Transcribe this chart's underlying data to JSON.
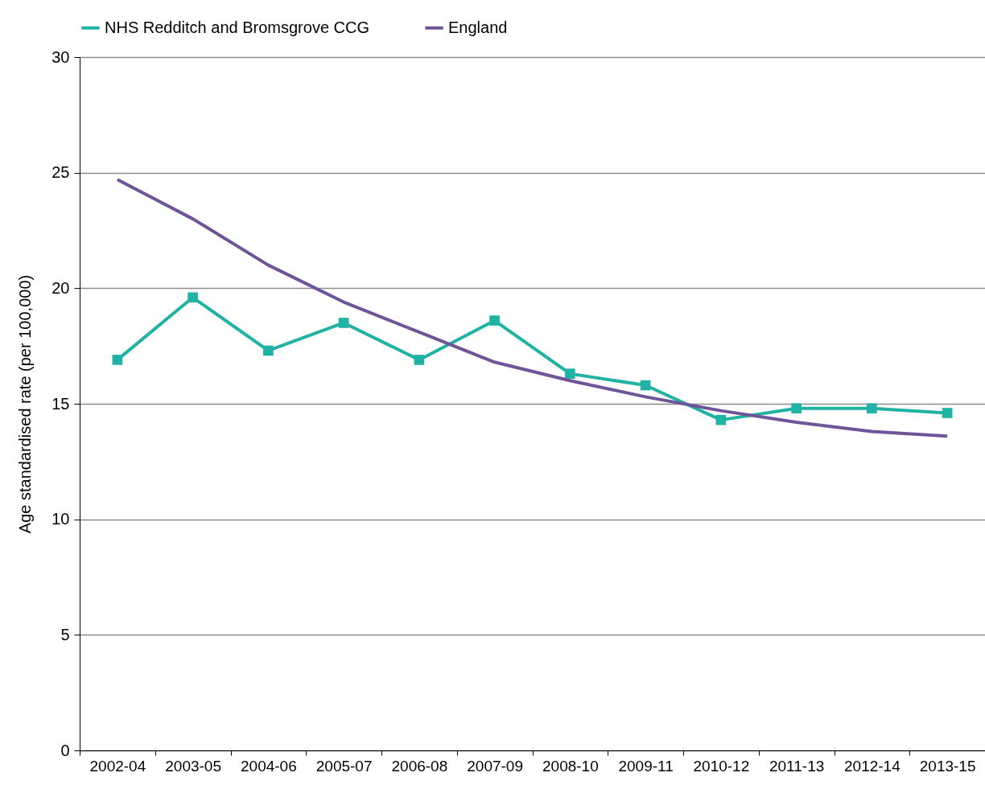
{
  "chart_data": {
    "type": "line",
    "ylabel": "Age standardised rate (per 100,000)",
    "categories": [
      "2002-04",
      "2003-05",
      "2004-06",
      "2005-07",
      "2006-08",
      "2007-09",
      "2008-10",
      "2009-11",
      "2010-12",
      "2011-13",
      "2012-14",
      "2013-15"
    ],
    "series": [
      {
        "name": "NHS Redditch and Bromsgrove CCG",
        "color": "#20b2a3",
        "marker": "square",
        "values": [
          16.9,
          19.6,
          17.3,
          18.5,
          16.9,
          18.6,
          16.3,
          15.8,
          14.3,
          14.8,
          14.8,
          14.6
        ]
      },
      {
        "name": "England",
        "color": "#6f5497",
        "marker": "none",
        "values": [
          24.7,
          23.0,
          21.0,
          19.4,
          18.1,
          16.8,
          16.0,
          15.3,
          14.7,
          14.2,
          13.8,
          13.6
        ]
      }
    ],
    "ylim": [
      0,
      30
    ],
    "yticks": [
      0,
      5,
      10,
      15,
      20,
      25,
      30
    ],
    "grid": "y",
    "legend": "top",
    "line_style": "solid"
  }
}
